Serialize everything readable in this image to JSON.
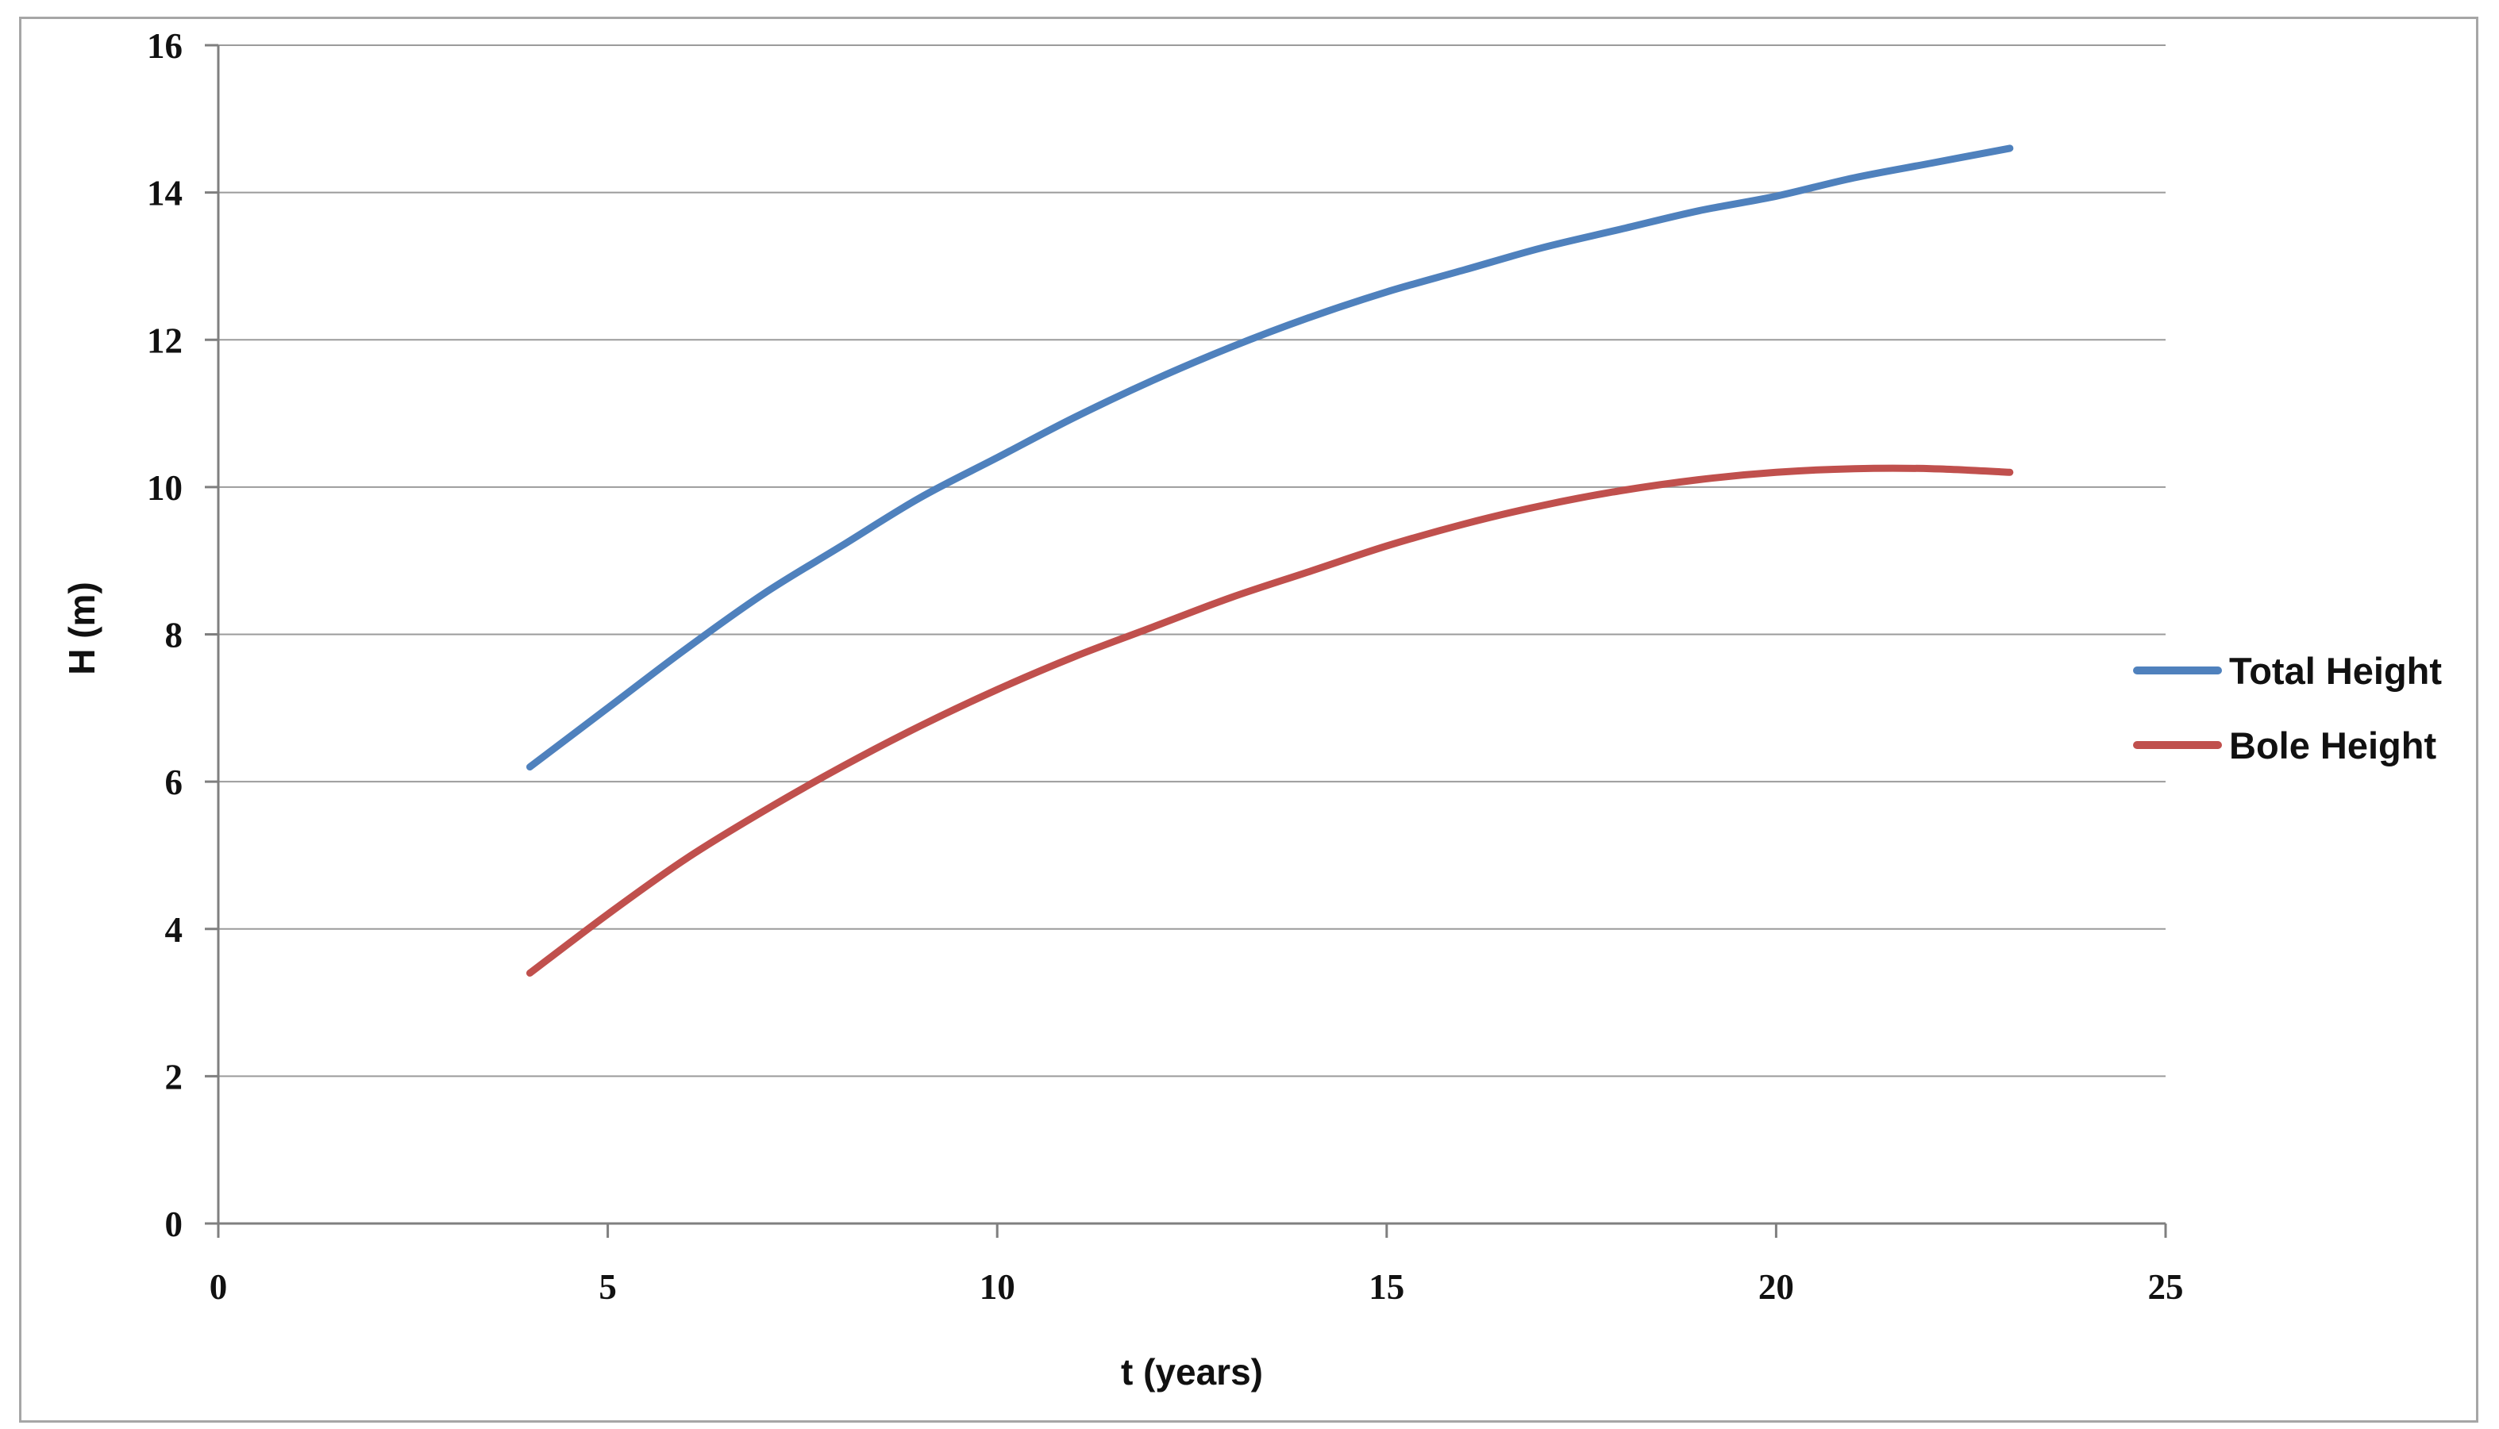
{
  "chart_data": {
    "type": "line",
    "title": "",
    "xlabel": "t (years)",
    "ylabel": "H (m)",
    "xlim": [
      0,
      25
    ],
    "ylim": [
      0,
      16
    ],
    "x_ticks": [
      0,
      5,
      10,
      15,
      20,
      25
    ],
    "y_ticks": [
      0,
      2,
      4,
      6,
      8,
      10,
      12,
      14,
      16
    ],
    "grid": "horizontal",
    "legend_position": "right",
    "x": [
      4,
      5,
      6,
      7,
      8,
      9,
      10,
      11,
      12,
      13,
      14,
      15,
      16,
      17,
      18,
      19,
      20,
      21,
      22,
      23
    ],
    "series": [
      {
        "name": "Total Height",
        "color": "#4F81BD",
        "values": [
          6.2,
          7.0,
          7.8,
          8.55,
          9.2,
          9.85,
          10.4,
          10.95,
          11.45,
          11.9,
          12.3,
          12.65,
          12.95,
          13.25,
          13.5,
          13.75,
          13.95,
          14.2,
          14.4,
          14.6
        ]
      },
      {
        "name": "Bole Height",
        "color": "#C0504D",
        "values": [
          3.4,
          4.2,
          4.95,
          5.6,
          6.2,
          6.75,
          7.25,
          7.7,
          8.1,
          8.5,
          8.85,
          9.2,
          9.5,
          9.75,
          9.95,
          10.1,
          10.2,
          10.25,
          10.25,
          10.2
        ]
      }
    ]
  },
  "colors": {
    "gridline": "#9b9b9b",
    "axis": "#7f7f7f",
    "text": "#111111",
    "frame_border": "#a6a6a6",
    "background": "#ffffff"
  }
}
